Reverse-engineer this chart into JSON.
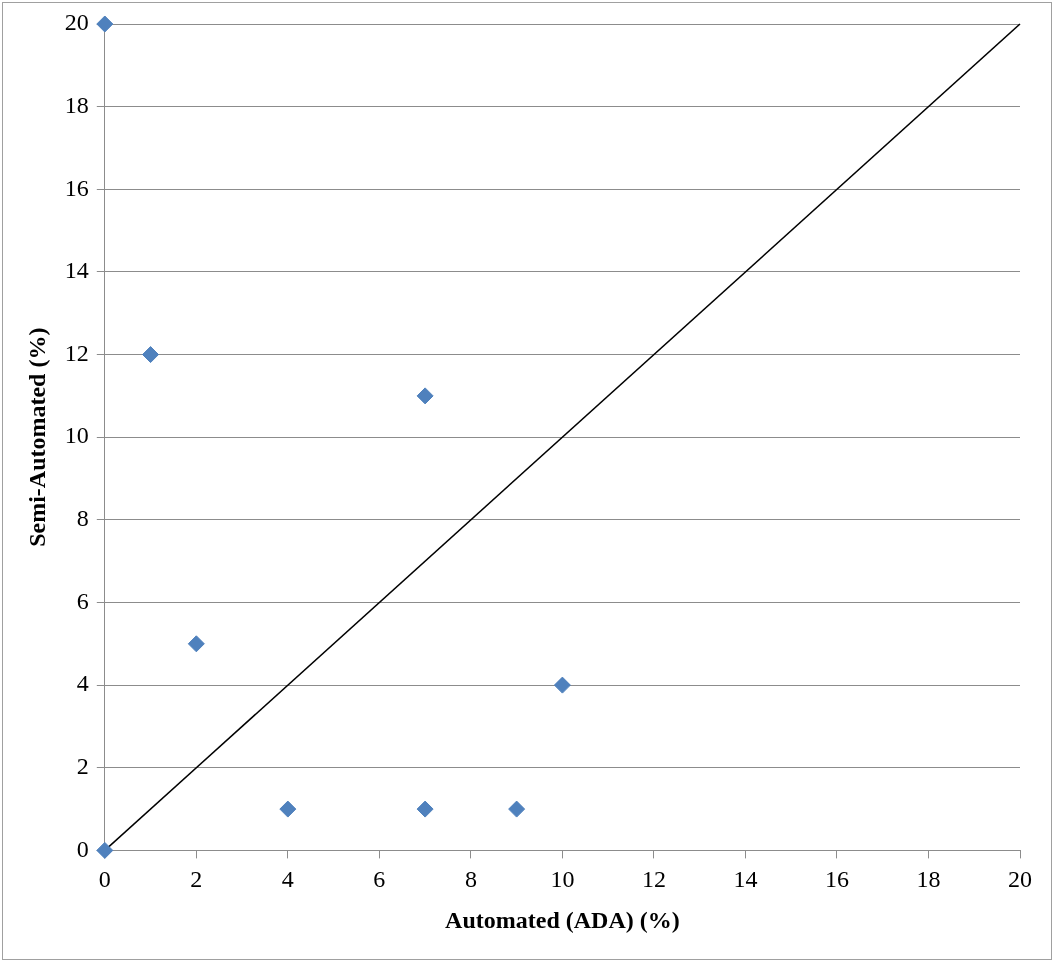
{
  "chart_data": {
    "type": "scatter",
    "xlabel": "Automated (ADA) (%)",
    "ylabel": "Semi-Automated (%)",
    "series": [
      {
        "color": "#4f81bd",
        "marker": "diamond",
        "x": [
          0,
          1,
          7,
          2,
          10,
          4,
          7,
          9,
          0
        ],
        "values": [
          20,
          12,
          11,
          5,
          4,
          1,
          1,
          1,
          0
        ]
      },
      {
        "type": "line",
        "color": "#000000",
        "marker": "none",
        "x": [
          0,
          20
        ],
        "values": [
          0,
          20
        ]
      }
    ],
    "xlim": [
      0,
      20
    ],
    "ylim": [
      0,
      20
    ],
    "xticks": [
      0,
      2,
      4,
      6,
      8,
      10,
      12,
      14,
      16,
      18,
      20
    ],
    "yticks": [
      0,
      2,
      4,
      6,
      8,
      10,
      12,
      14,
      16,
      18,
      20
    ],
    "grid": "y"
  }
}
